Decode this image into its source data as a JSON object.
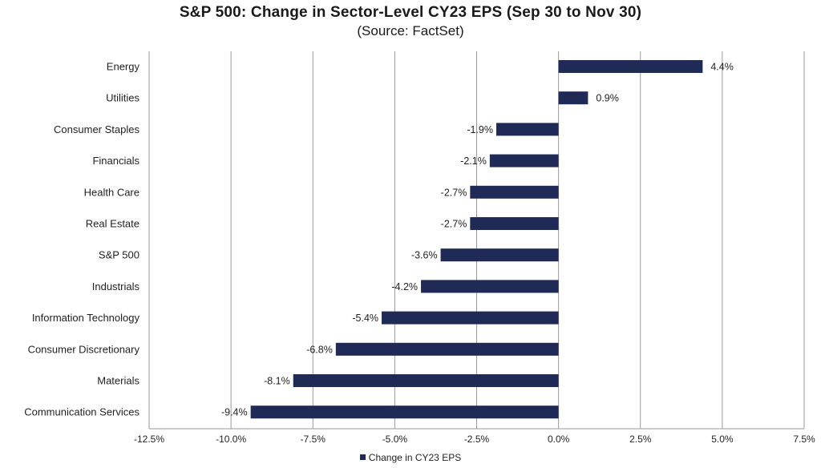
{
  "chart_data": {
    "type": "bar",
    "orientation": "horizontal",
    "title": "S&P 500: Change in Sector-Level CY23 EPS (Sep 30 to Nov 30)",
    "subtitle": "(Source: FactSet)",
    "categories": [
      "Energy",
      "Utilities",
      "Consumer Staples",
      "Financials",
      "Health Care",
      "Real Estate",
      "S&P 500",
      "Industrials",
      "Information Technology",
      "Consumer Discretionary",
      "Materials",
      "Communication Services"
    ],
    "series": [
      {
        "name": "Change in CY23 EPS",
        "values": [
          4.4,
          0.9,
          -1.9,
          -2.1,
          -2.7,
          -2.7,
          -3.6,
          -4.2,
          -5.4,
          -6.8,
          -8.1,
          -9.4
        ],
        "labels": [
          "4.4%",
          "0.9%",
          "-1.9%",
          "-2.1%",
          "-2.7%",
          "-2.7%",
          "-3.6%",
          "-4.2%",
          "-5.4%",
          "-6.8%",
          "-8.1%",
          "-9.4%"
        ],
        "color": "#1f2a56"
      }
    ],
    "xlim": [
      -12.5,
      7.5
    ],
    "xticks": [
      -12.5,
      -10.0,
      -7.5,
      -5.0,
      -2.5,
      0.0,
      2.5,
      5.0,
      7.5
    ],
    "xtick_labels": [
      "-12.5%",
      "-10.0%",
      "-7.5%",
      "-5.0%",
      "-2.5%",
      "0.0%",
      "2.5%",
      "5.0%",
      "7.5%"
    ],
    "grid": "vertical",
    "legend_position": "bottom"
  }
}
